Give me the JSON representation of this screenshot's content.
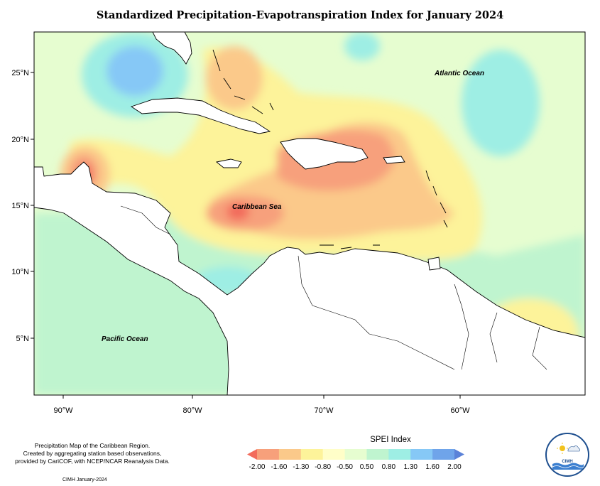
{
  "title": "Standardized Precipitation-Evapotranspiration Index for January 2024",
  "map": {
    "lon_ticks": [
      "90°W",
      "80°W",
      "70°W",
      "60°W"
    ],
    "lat_ticks": [
      "25°N",
      "20°N",
      "15°N",
      "10°N",
      "5°N"
    ],
    "labels": {
      "atlantic": "Atlantic Ocean",
      "caribbean": "Caribbean Sea",
      "pacific": "Pacific Ocean"
    }
  },
  "legend": {
    "title": "SPEI Index",
    "values": [
      "-2.00",
      "-1.60",
      "-1.30",
      "-0.80",
      "-0.50",
      "0.50",
      "0.80",
      "1.30",
      "1.60",
      "2.00"
    ],
    "colors": [
      "#f26b5b",
      "#f7a07b",
      "#fbc98a",
      "#fdf39a",
      "#fffec8",
      "#e6fdd0",
      "#bff4cf",
      "#9eeee4",
      "#86c8f6",
      "#6fa4ea",
      "#5b82d8"
    ]
  },
  "note": {
    "line1": "Precipitation Map of the Caribbean Region.",
    "line2": "Created by aggregating station based observations,",
    "line3": "provided by CariCOF, with NCEP/NCAR Reanalysis Data."
  },
  "credit": "CIMH January-2024",
  "logo_text": "CIMH"
}
